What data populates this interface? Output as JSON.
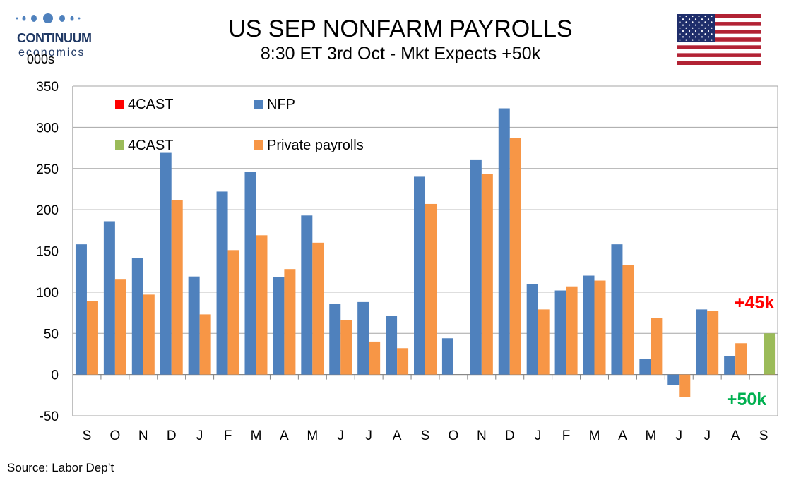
{
  "header": {
    "title": "US SEP NONFARM PAYROLLS",
    "subtitle": "8:30 ET 3rd Oct - Mkt Expects +50k",
    "logo_brand": "CONTINUUM",
    "logo_sub": "economics",
    "unit_label": "000s",
    "flag_icon": "us-flag-icon"
  },
  "footer": {
    "source": "Source: Labor Dep’t"
  },
  "colors": {
    "nfp": "#4f81bd",
    "private": "#f79646",
    "forecast_nfp": "#ff0000",
    "forecast_private": "#9bbb59",
    "annotation_nfp": "#ff0000",
    "annotation_private": "#00b050"
  },
  "chart_data": {
    "type": "bar",
    "categories": [
      "S",
      "O",
      "N",
      "D",
      "J",
      "F",
      "M",
      "A",
      "M",
      "J",
      "J",
      "A",
      "S",
      "O",
      "N",
      "D",
      "J",
      "F",
      "M",
      "A",
      "M",
      "J",
      "J",
      "A",
      "S"
    ],
    "ylim": [
      -50,
      350
    ],
    "yticks": [
      -50,
      0,
      50,
      100,
      150,
      200,
      250,
      300,
      350
    ],
    "grid": true,
    "series": [
      {
        "name": "NFP",
        "values": [
          158,
          186,
          141,
          269,
          119,
          222,
          246,
          118,
          193,
          86,
          88,
          71,
          240,
          44,
          261,
          323,
          110,
          102,
          120,
          158,
          19,
          -13,
          79,
          22,
          null
        ]
      },
      {
        "name": "Private payrolls",
        "values": [
          89,
          116,
          97,
          212,
          73,
          151,
          169,
          128,
          160,
          66,
          40,
          32,
          207,
          null,
          243,
          287,
          79,
          107,
          114,
          133,
          69,
          -27,
          77,
          38,
          null
        ]
      },
      {
        "name": "4CAST",
        "values": [
          null,
          null,
          null,
          null,
          null,
          null,
          null,
          null,
          null,
          null,
          null,
          null,
          null,
          null,
          null,
          null,
          null,
          null,
          null,
          null,
          null,
          null,
          null,
          null,
          45
        ]
      },
      {
        "name": "4CAST",
        "values": [
          null,
          null,
          null,
          null,
          null,
          null,
          null,
          null,
          null,
          null,
          null,
          null,
          null,
          null,
          null,
          null,
          null,
          null,
          null,
          null,
          null,
          null,
          null,
          null,
          50
        ]
      }
    ],
    "legend": [
      {
        "label": "4CAST",
        "color": "#ff0000"
      },
      {
        "label": "NFP",
        "color": "#4f81bd"
      },
      {
        "label": "4CAST",
        "color": "#9bbb59"
      },
      {
        "label": "Private payrolls",
        "color": "#f79646"
      }
    ],
    "annotations": [
      {
        "text": "+45k",
        "color": "#ff0000"
      },
      {
        "text": "+50k",
        "color": "#00b050"
      }
    ]
  }
}
